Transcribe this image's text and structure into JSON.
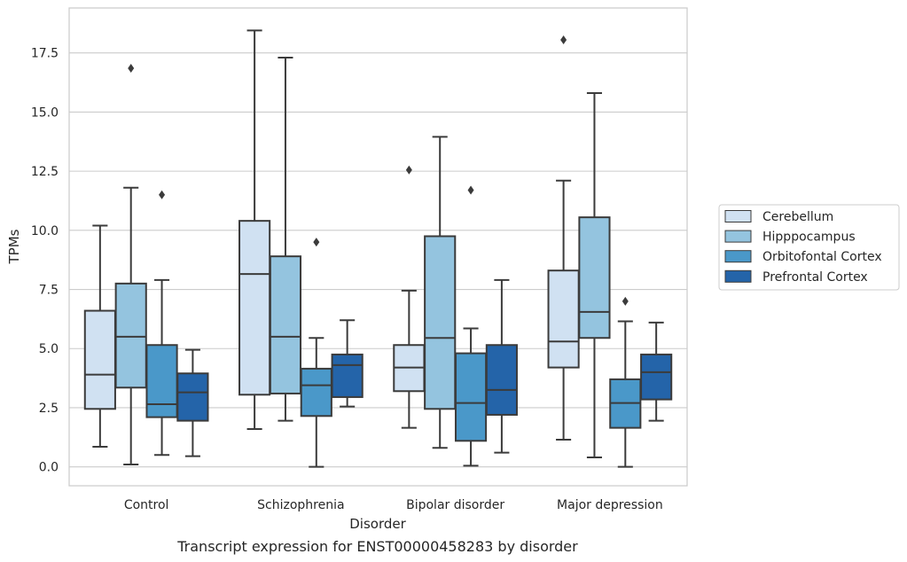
{
  "chart_data": {
    "type": "box",
    "caption": "Transcript expression for ENST00000458283 by disorder",
    "xlabel": "Disorder",
    "ylabel": "TPMs",
    "ylim": [
      -0.8,
      19.4
    ],
    "yticks": [
      0.0,
      2.5,
      5.0,
      7.5,
      10.0,
      12.5,
      15.0,
      17.5
    ],
    "ytick_labels": [
      "0.0",
      "2.5",
      "5.0",
      "7.5",
      "10.0",
      "12.5",
      "15.0",
      "17.5"
    ],
    "grid": "horizontal",
    "legend_position": "right",
    "categories": [
      "Control",
      "Schizophrenia",
      "Bipolar disorder",
      "Major depression"
    ],
    "series": [
      {
        "name": "Cerebellum",
        "color": "#d0e1f2",
        "boxes": [
          {
            "whisker_low": 0.85,
            "q1": 2.45,
            "median": 3.9,
            "q3": 6.6,
            "whisker_high": 10.2,
            "outliers": []
          },
          {
            "whisker_low": 1.6,
            "q1": 3.05,
            "median": 8.15,
            "q3": 10.4,
            "whisker_high": 18.45,
            "outliers": []
          },
          {
            "whisker_low": 1.65,
            "q1": 3.2,
            "median": 4.2,
            "q3": 5.15,
            "whisker_high": 7.45,
            "outliers": [
              12.55
            ]
          },
          {
            "whisker_low": 1.15,
            "q1": 4.2,
            "median": 5.3,
            "q3": 8.3,
            "whisker_high": 12.1,
            "outliers": [
              18.05
            ]
          }
        ]
      },
      {
        "name": "Hipppocampus",
        "color": "#94c4df",
        "boxes": [
          {
            "whisker_low": 0.1,
            "q1": 3.35,
            "median": 5.5,
            "q3": 7.75,
            "whisker_high": 11.8,
            "outliers": [
              16.85
            ]
          },
          {
            "whisker_low": 1.95,
            "q1": 3.1,
            "median": 5.5,
            "q3": 8.9,
            "whisker_high": 17.3,
            "outliers": []
          },
          {
            "whisker_low": 0.8,
            "q1": 2.45,
            "median": 5.45,
            "q3": 9.75,
            "whisker_high": 13.95,
            "outliers": []
          },
          {
            "whisker_low": 0.4,
            "q1": 5.45,
            "median": 6.55,
            "q3": 10.55,
            "whisker_high": 15.8,
            "outliers": []
          }
        ]
      },
      {
        "name": "Orbitofontal Cortex",
        "color": "#4a98c9",
        "boxes": [
          {
            "whisker_low": 0.5,
            "q1": 2.1,
            "median": 2.65,
            "q3": 5.15,
            "whisker_high": 7.9,
            "outliers": [
              11.5
            ]
          },
          {
            "whisker_low": 0.0,
            "q1": 2.15,
            "median": 3.45,
            "q3": 4.15,
            "whisker_high": 5.45,
            "outliers": [
              9.5
            ]
          },
          {
            "whisker_low": 0.05,
            "q1": 1.1,
            "median": 2.7,
            "q3": 4.8,
            "whisker_high": 5.85,
            "outliers": [
              11.7
            ]
          },
          {
            "whisker_low": 0.0,
            "q1": 1.65,
            "median": 2.7,
            "q3": 3.7,
            "whisker_high": 6.15,
            "outliers": [
              7.0
            ]
          }
        ]
      },
      {
        "name": "Prefrontal Cortex",
        "color": "#2464a9",
        "boxes": [
          {
            "whisker_low": 0.45,
            "q1": 1.95,
            "median": 3.15,
            "q3": 3.95,
            "whisker_high": 4.95,
            "outliers": []
          },
          {
            "whisker_low": 2.55,
            "q1": 2.95,
            "median": 4.3,
            "q3": 4.75,
            "whisker_high": 6.2,
            "outliers": []
          },
          {
            "whisker_low": 0.6,
            "q1": 2.2,
            "median": 3.25,
            "q3": 5.15,
            "whisker_high": 7.9,
            "outliers": []
          },
          {
            "whisker_low": 1.95,
            "q1": 2.85,
            "median": 4.0,
            "q3": 4.75,
            "whisker_high": 6.1,
            "outliers": []
          }
        ]
      }
    ]
  }
}
